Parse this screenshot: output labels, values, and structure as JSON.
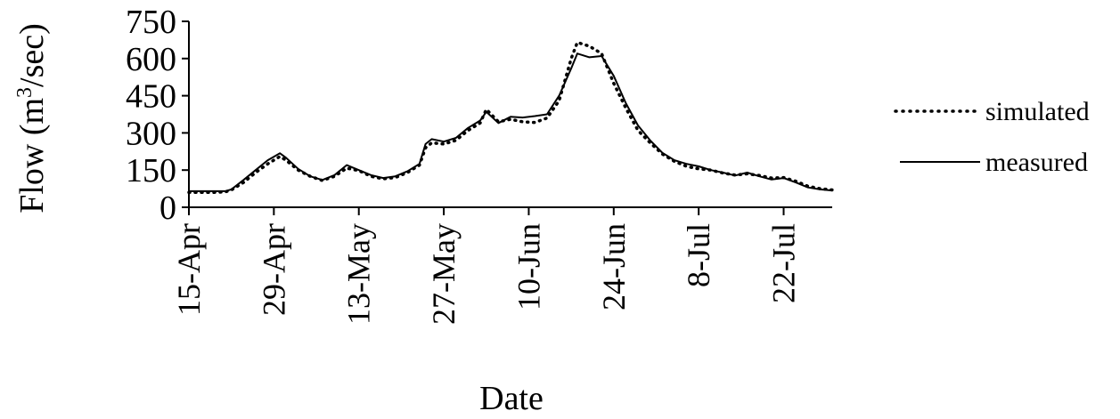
{
  "chart_data": {
    "type": "line",
    "xlabel": "Date",
    "ylabel_main": "Flow (m",
    "ylabel_sup": "3",
    "ylabel_tail": "/sec)",
    "ylim": [
      0,
      750
    ],
    "yticks": [
      0,
      150,
      300,
      450,
      600,
      750
    ],
    "xlim": [
      "2000-04-15",
      "2000-07-30"
    ],
    "xticks": [
      {
        "date": "2000-04-15",
        "label": "15-Apr"
      },
      {
        "date": "2000-04-29",
        "label": "29-Apr"
      },
      {
        "date": "2000-05-13",
        "label": "13-May"
      },
      {
        "date": "2000-05-27",
        "label": "27-May"
      },
      {
        "date": "2000-06-10",
        "label": "10-Jun"
      },
      {
        "date": "2000-06-24",
        "label": "24-Jun"
      },
      {
        "date": "2000-07-08",
        "label": "8-Jul"
      },
      {
        "date": "2000-07-22",
        "label": "22-Jul"
      }
    ],
    "legend_position": "right",
    "grid": false,
    "series": [
      {
        "name": "simulated",
        "style": "dotted",
        "color": "#000000",
        "points": [
          [
            "2000-04-15",
            60
          ],
          [
            "2000-04-17",
            60
          ],
          [
            "2000-04-19",
            60
          ],
          [
            "2000-04-21",
            62
          ],
          [
            "2000-04-22",
            70
          ],
          [
            "2000-04-24",
            100
          ],
          [
            "2000-04-26",
            140
          ],
          [
            "2000-04-28",
            175
          ],
          [
            "2000-04-30",
            205
          ],
          [
            "2000-05-01",
            190
          ],
          [
            "2000-05-03",
            150
          ],
          [
            "2000-05-05",
            125
          ],
          [
            "2000-05-07",
            108
          ],
          [
            "2000-05-09",
            125
          ],
          [
            "2000-05-11",
            158
          ],
          [
            "2000-05-13",
            148
          ],
          [
            "2000-05-15",
            125
          ],
          [
            "2000-05-17",
            115
          ],
          [
            "2000-05-19",
            120
          ],
          [
            "2000-05-21",
            140
          ],
          [
            "2000-05-23",
            170
          ],
          [
            "2000-05-24",
            240
          ],
          [
            "2000-05-25",
            260
          ],
          [
            "2000-05-27",
            255
          ],
          [
            "2000-05-29",
            270
          ],
          [
            "2000-05-31",
            310
          ],
          [
            "2000-06-02",
            340
          ],
          [
            "2000-06-03",
            395
          ],
          [
            "2000-06-05",
            345
          ],
          [
            "2000-06-07",
            355
          ],
          [
            "2000-06-09",
            345
          ],
          [
            "2000-06-11",
            342
          ],
          [
            "2000-06-13",
            360
          ],
          [
            "2000-06-15",
            430
          ],
          [
            "2000-06-17",
            600
          ],
          [
            "2000-06-18",
            665
          ],
          [
            "2000-06-20",
            650
          ],
          [
            "2000-06-22",
            620
          ],
          [
            "2000-06-24",
            500
          ],
          [
            "2000-06-26",
            400
          ],
          [
            "2000-06-28",
            310
          ],
          [
            "2000-06-30",
            260
          ],
          [
            "2000-07-02",
            215
          ],
          [
            "2000-07-04",
            185
          ],
          [
            "2000-07-06",
            165
          ],
          [
            "2000-07-08",
            155
          ],
          [
            "2000-07-10",
            150
          ],
          [
            "2000-07-12",
            138
          ],
          [
            "2000-07-14",
            130
          ],
          [
            "2000-07-16",
            135
          ],
          [
            "2000-07-18",
            128
          ],
          [
            "2000-07-20",
            118
          ],
          [
            "2000-07-22",
            120
          ],
          [
            "2000-07-24",
            105
          ],
          [
            "2000-07-26",
            85
          ],
          [
            "2000-07-28",
            75
          ],
          [
            "2000-07-30",
            70
          ]
        ]
      },
      {
        "name": "measured",
        "style": "solid",
        "color": "#000000",
        "points": [
          [
            "2000-04-15",
            65
          ],
          [
            "2000-04-17",
            65
          ],
          [
            "2000-04-19",
            65
          ],
          [
            "2000-04-21",
            65
          ],
          [
            "2000-04-22",
            72
          ],
          [
            "2000-04-24",
            110
          ],
          [
            "2000-04-26",
            150
          ],
          [
            "2000-04-28",
            190
          ],
          [
            "2000-04-30",
            218
          ],
          [
            "2000-05-01",
            200
          ],
          [
            "2000-05-03",
            155
          ],
          [
            "2000-05-05",
            125
          ],
          [
            "2000-05-07",
            110
          ],
          [
            "2000-05-09",
            130
          ],
          [
            "2000-05-11",
            170
          ],
          [
            "2000-05-13",
            150
          ],
          [
            "2000-05-15",
            130
          ],
          [
            "2000-05-17",
            118
          ],
          [
            "2000-05-19",
            125
          ],
          [
            "2000-05-21",
            145
          ],
          [
            "2000-05-23",
            175
          ],
          [
            "2000-05-24",
            255
          ],
          [
            "2000-05-25",
            275
          ],
          [
            "2000-05-27",
            265
          ],
          [
            "2000-05-29",
            280
          ],
          [
            "2000-05-31",
            320
          ],
          [
            "2000-06-02",
            350
          ],
          [
            "2000-06-03",
            385
          ],
          [
            "2000-06-05",
            340
          ],
          [
            "2000-06-07",
            365
          ],
          [
            "2000-06-09",
            362
          ],
          [
            "2000-06-11",
            368
          ],
          [
            "2000-06-13",
            375
          ],
          [
            "2000-06-15",
            450
          ],
          [
            "2000-06-17",
            560
          ],
          [
            "2000-06-18",
            620
          ],
          [
            "2000-06-20",
            605
          ],
          [
            "2000-06-22",
            610
          ],
          [
            "2000-06-24",
            530
          ],
          [
            "2000-06-26",
            420
          ],
          [
            "2000-06-28",
            330
          ],
          [
            "2000-06-30",
            270
          ],
          [
            "2000-07-02",
            220
          ],
          [
            "2000-07-04",
            190
          ],
          [
            "2000-07-06",
            175
          ],
          [
            "2000-07-08",
            165
          ],
          [
            "2000-07-10",
            150
          ],
          [
            "2000-07-12",
            140
          ],
          [
            "2000-07-14",
            128
          ],
          [
            "2000-07-16",
            140
          ],
          [
            "2000-07-18",
            125
          ],
          [
            "2000-07-20",
            112
          ],
          [
            "2000-07-22",
            118
          ],
          [
            "2000-07-24",
            100
          ],
          [
            "2000-07-26",
            80
          ],
          [
            "2000-07-28",
            72
          ],
          [
            "2000-07-30",
            68
          ]
        ]
      }
    ]
  }
}
